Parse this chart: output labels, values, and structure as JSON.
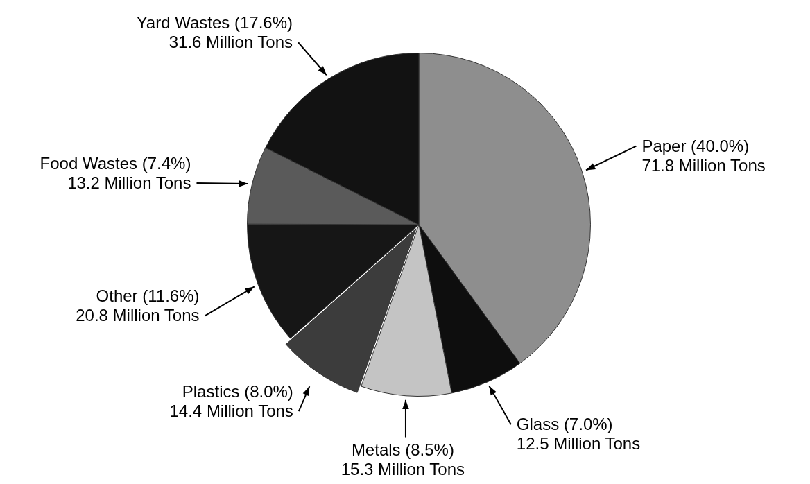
{
  "chart_data": {
    "type": "pie",
    "categories": [
      "Paper",
      "Glass",
      "Metals",
      "Plastics",
      "Other",
      "Food Wastes",
      "Yard Wastes"
    ],
    "values": [
      71.8,
      12.5,
      15.3,
      14.4,
      20.8,
      13.2,
      31.6
    ],
    "value_labels": [
      "(40.0%)\n71.8 Million Tons",
      "(7.0%)\n12.5 Million Tons",
      "(8.5%)\n15.3 Million Tons",
      "(8.0%)\n14.4 Million Tons",
      "(11.6%)\n20.8 Million Tons",
      "(7.4%)\n13.2 Million Tons",
      "(17.6%)\n31.6 Million Tons"
    ],
    "colors": [
      "#8e8e8e",
      "#0e0e0e",
      "#c4c4c4",
      "#3c3c3c",
      "#161616",
      "#5a5a5a",
      "#121212"
    ],
    "legend": false
  }
}
